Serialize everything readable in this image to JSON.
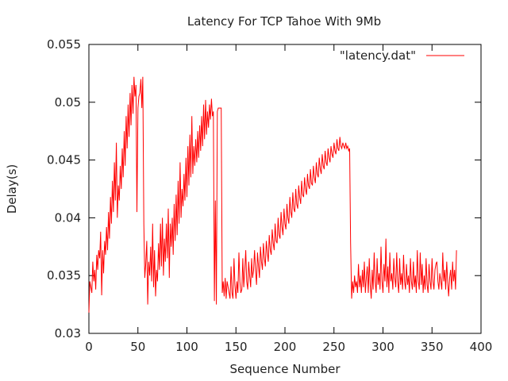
{
  "chart_data": {
    "type": "line",
    "title": "Latency For TCP Tahoe With 9Mb",
    "xlabel": "Sequence Number",
    "ylabel": "Delay(s)",
    "xlim": [
      0,
      400
    ],
    "ylim": [
      0.03,
      0.055
    ],
    "x_ticks": [
      0,
      50,
      100,
      150,
      200,
      250,
      300,
      350,
      400
    ],
    "y_ticks": [
      0.03,
      0.035,
      0.04,
      0.045,
      0.05,
      0.055
    ],
    "x_tick_labels": [
      "0",
      "50",
      "100",
      "150",
      "200",
      "250",
      "300",
      "350",
      "400"
    ],
    "y_tick_labels": [
      "0.03",
      "0.035",
      "0.04",
      "0.045",
      "0.05",
      "0.055"
    ],
    "grid": false,
    "legend": "top-right",
    "series": [
      {
        "name": "\"latency.dat\"",
        "color": "#ff0000",
        "x": [
          0,
          1,
          2,
          3,
          4,
          5,
          6,
          7,
          8,
          9,
          10,
          11,
          12,
          13,
          14,
          15,
          16,
          17,
          18,
          19,
          20,
          21,
          22,
          23,
          24,
          25,
          26,
          27,
          28,
          29,
          30,
          31,
          32,
          33,
          34,
          35,
          36,
          37,
          38,
          39,
          40,
          41,
          42,
          43,
          44,
          45,
          46,
          47,
          48,
          49,
          50,
          51,
          52,
          53,
          54,
          55,
          56,
          57,
          58,
          59,
          60,
          61,
          62,
          63,
          64,
          65,
          66,
          67,
          68,
          69,
          70,
          71,
          72,
          73,
          74,
          75,
          76,
          77,
          78,
          79,
          80,
          81,
          82,
          83,
          84,
          85,
          86,
          87,
          88,
          89,
          90,
          91,
          92,
          93,
          94,
          95,
          96,
          97,
          98,
          99,
          100,
          101,
          102,
          103,
          104,
          105,
          106,
          107,
          108,
          109,
          110,
          111,
          112,
          113,
          114,
          115,
          116,
          117,
          118,
          119,
          120,
          121,
          122,
          123,
          124,
          125,
          126,
          127,
          128,
          129,
          130,
          131,
          132,
          133,
          134,
          135,
          136,
          137,
          138,
          139,
          140,
          141,
          142,
          143,
          144,
          145,
          146,
          147,
          148,
          149,
          150,
          151,
          152,
          153,
          154,
          155,
          156,
          157,
          158,
          159,
          160,
          161,
          162,
          163,
          164,
          165,
          166,
          167,
          168,
          169,
          170,
          171,
          172,
          173,
          174,
          175,
          176,
          177,
          178,
          179,
          180,
          181,
          182,
          183,
          184,
          185,
          186,
          187,
          188,
          189,
          190,
          191,
          192,
          193,
          194,
          195,
          196,
          197,
          198,
          199,
          200,
          201,
          202,
          203,
          204,
          205,
          206,
          207,
          208,
          209,
          210,
          211,
          212,
          213,
          214,
          215,
          216,
          217,
          218,
          219,
          220,
          221,
          222,
          223,
          224,
          225,
          226,
          227,
          228,
          229,
          230,
          231,
          232,
          233,
          234,
          235,
          236,
          237,
          238,
          239,
          240,
          241,
          242,
          243,
          244,
          245,
          246,
          247,
          248,
          249,
          250,
          251,
          252,
          253,
          254,
          255,
          256,
          257,
          258,
          259,
          260,
          261,
          262,
          263,
          264,
          265,
          266,
          267,
          268,
          269,
          270,
          271,
          272,
          273,
          274,
          275,
          276,
          277,
          278,
          279,
          280,
          281,
          282,
          283,
          284,
          285,
          286,
          287,
          288,
          289,
          290,
          291,
          292,
          293,
          294,
          295,
          296,
          297,
          298,
          299,
          300,
          301,
          302,
          303,
          304,
          305,
          306,
          307,
          308,
          309,
          310,
          311,
          312,
          313,
          314,
          315,
          316,
          317,
          318,
          319,
          320,
          321,
          322,
          323,
          324,
          325,
          326,
          327,
          328,
          329,
          330,
          331,
          332,
          333,
          334,
          335,
          336,
          337,
          338,
          339,
          340,
          341,
          342,
          343,
          344,
          345,
          346,
          347,
          348,
          349,
          350,
          351,
          352,
          353,
          354,
          355,
          356,
          357,
          358,
          359,
          360,
          361,
          362,
          363,
          364,
          365,
          366,
          367,
          368,
          369,
          370,
          371,
          372,
          373,
          374,
          375
        ],
        "y": [
          0.0318,
          0.0345,
          0.034,
          0.0335,
          0.0362,
          0.0345,
          0.0355,
          0.0338,
          0.0368,
          0.0355,
          0.0372,
          0.0365,
          0.0388,
          0.0333,
          0.0372,
          0.0352,
          0.038,
          0.0368,
          0.0392,
          0.0372,
          0.0405,
          0.0382,
          0.0418,
          0.0395,
          0.0432,
          0.0405,
          0.0448,
          0.0415,
          0.0465,
          0.04,
          0.0428,
          0.0415,
          0.0445,
          0.0425,
          0.046,
          0.0435,
          0.0475,
          0.0445,
          0.0488,
          0.046,
          0.0498,
          0.047,
          0.0508,
          0.048,
          0.0515,
          0.049,
          0.0522,
          0.0505,
          0.0515,
          0.0405,
          0.0495,
          0.0505,
          0.0508,
          0.052,
          0.0495,
          0.0522,
          0.0395,
          0.0348,
          0.036,
          0.038,
          0.0325,
          0.0362,
          0.035,
          0.0375,
          0.0345,
          0.0395,
          0.034,
          0.0372,
          0.0332,
          0.0355,
          0.0345,
          0.0378,
          0.0355,
          0.0395,
          0.0358,
          0.04,
          0.035,
          0.0382,
          0.0362,
          0.0395,
          0.0365,
          0.0408,
          0.0348,
          0.0395,
          0.0375,
          0.04,
          0.0368,
          0.0412,
          0.038,
          0.042,
          0.0385,
          0.0432,
          0.0395,
          0.0448,
          0.04,
          0.0425,
          0.041,
          0.0438,
          0.0415,
          0.0452,
          0.0418,
          0.0462,
          0.0428,
          0.0472,
          0.0435,
          0.0488,
          0.0438,
          0.0462,
          0.0445,
          0.0468,
          0.0448,
          0.0475,
          0.0452,
          0.048,
          0.0458,
          0.0488,
          0.0462,
          0.0498,
          0.0468,
          0.0502,
          0.0472,
          0.0492,
          0.0478,
          0.0498,
          0.0485,
          0.0503,
          0.0488,
          0.0492,
          0.0328,
          0.0415,
          0.0325,
          0.0492,
          0.0495,
          0.0495,
          0.0495,
          0.0495,
          0.0335,
          0.0345,
          0.0332,
          0.0348,
          0.033,
          0.0345,
          0.034,
          0.0335,
          0.033,
          0.0358,
          0.0335,
          0.033,
          0.0365,
          0.0342,
          0.033,
          0.0345,
          0.0335,
          0.037,
          0.0345,
          0.0335,
          0.0338,
          0.0365,
          0.034,
          0.0355,
          0.0372,
          0.0345,
          0.0338,
          0.0362,
          0.035,
          0.034,
          0.0365,
          0.0348,
          0.0355,
          0.0372,
          0.0355,
          0.0342,
          0.037,
          0.0358,
          0.0348,
          0.0375,
          0.0362,
          0.0355,
          0.0378,
          0.0365,
          0.0358,
          0.038,
          0.037,
          0.0362,
          0.0385,
          0.0372,
          0.0368,
          0.039,
          0.0378,
          0.0372,
          0.0395,
          0.038,
          0.0378,
          0.04,
          0.0385,
          0.0382,
          0.0405,
          0.0392,
          0.0385,
          0.0408,
          0.0395,
          0.039,
          0.0412,
          0.04,
          0.0395,
          0.0418,
          0.0405,
          0.04,
          0.0422,
          0.0408,
          0.0405,
          0.0425,
          0.0412,
          0.0408,
          0.0428,
          0.0418,
          0.0412,
          0.0432,
          0.042,
          0.0418,
          0.0435,
          0.0425,
          0.042,
          0.0438,
          0.0428,
          0.0425,
          0.0442,
          0.043,
          0.0428,
          0.0445,
          0.0435,
          0.043,
          0.0448,
          0.0438,
          0.0435,
          0.0452,
          0.0442,
          0.0438,
          0.0455,
          0.0445,
          0.0442,
          0.0458,
          0.0448,
          0.0445,
          0.046,
          0.0452,
          0.0448,
          0.0462,
          0.0455,
          0.0452,
          0.0465,
          0.0458,
          0.0455,
          0.0468,
          0.046,
          0.0458,
          0.047,
          0.0462,
          0.046,
          0.0465,
          0.0462,
          0.046,
          0.0465,
          0.046,
          0.0462,
          0.0458,
          0.046,
          0.0378,
          0.033,
          0.0345,
          0.0335,
          0.035,
          0.034,
          0.0345,
          0.0335,
          0.036,
          0.034,
          0.035,
          0.0335,
          0.0355,
          0.034,
          0.0362,
          0.0335,
          0.0348,
          0.0358,
          0.0335,
          0.0365,
          0.0342,
          0.033,
          0.0355,
          0.0338,
          0.037,
          0.0345,
          0.0335,
          0.0365,
          0.0342,
          0.0352,
          0.0338,
          0.0375,
          0.0345,
          0.0335,
          0.036,
          0.0345,
          0.0382,
          0.034,
          0.0358,
          0.0335,
          0.037,
          0.0345,
          0.0352,
          0.0338,
          0.0365,
          0.0348,
          0.034,
          0.037,
          0.0345,
          0.0335,
          0.0365,
          0.0342,
          0.0352,
          0.0338,
          0.0368,
          0.0345,
          0.0338,
          0.036,
          0.0342,
          0.035,
          0.0335,
          0.0365,
          0.0345,
          0.0338,
          0.0362,
          0.034,
          0.035,
          0.0335,
          0.0372,
          0.0345,
          0.0338,
          0.037,
          0.0342,
          0.036,
          0.0335,
          0.035,
          0.0338,
          0.0365,
          0.0342,
          0.0335,
          0.036,
          0.0345,
          0.0338,
          0.0365,
          0.0345,
          0.0338,
          0.0355,
          0.036,
          0.0362,
          0.0345,
          0.0338,
          0.0352,
          0.0345,
          0.0338,
          0.037,
          0.0345,
          0.0355,
          0.0338,
          0.0362,
          0.0345,
          0.0332,
          0.0348,
          0.0355,
          0.0338,
          0.0362,
          0.0345,
          0.0355,
          0.0338,
          0.0372
        ]
      }
    ]
  }
}
